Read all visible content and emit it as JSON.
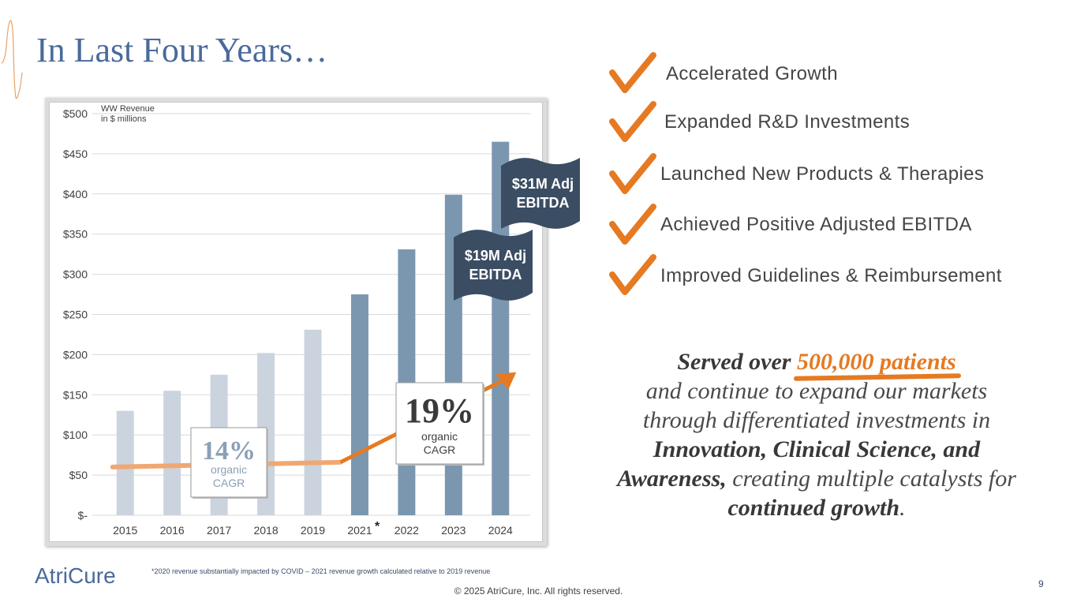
{
  "slide": {
    "title": "In Last Four Years…",
    "page_number": "9",
    "copyright": "© 2025 AtriCure, Inc. All rights reserved.",
    "footnote": "*2020 revenue substantially impacted by COVID – 2021 revenue growth calculated relative to 2019 revenue",
    "logo_text": "AtriCure"
  },
  "checklist": [
    {
      "label": "Accelerated Growth"
    },
    {
      "label": "Expanded R&D Investments"
    },
    {
      "label": "Launched New Products & Therapies"
    },
    {
      "label": "Achieved Positive Adjusted EBITDA"
    },
    {
      "label": "Improved Guidelines & Reimbursement"
    }
  ],
  "summary": {
    "p1": "Served over ",
    "highlight": "500,000 patients",
    "p2": "and continue to expand our markets through differentiated investments in",
    "bold1": "Innovation, Clinical Science, and Awareness,",
    "p3": " creating multiple catalysts for ",
    "bold2": "continued growth",
    "p4": "."
  },
  "colors": {
    "title": "#4a6a9c",
    "bar_light": "#cbd4de",
    "bar_dark": "#7b97b0",
    "orange": "#e57a22",
    "orange_light": "#f0a872",
    "flag": "#3b4d63",
    "check": "#e57a22"
  },
  "chart_data": {
    "type": "bar",
    "title": "WW Revenue",
    "subtitle": "in $ millions",
    "categories": [
      "2015",
      "2016",
      "2017",
      "2018",
      "2019",
      "2021",
      "2022",
      "2023",
      "2024"
    ],
    "category_markers": [
      "",
      "",
      "",
      "",
      "",
      "*",
      "",
      "",
      ""
    ],
    "values": [
      130,
      155,
      175,
      202,
      231,
      275,
      331,
      399,
      465
    ],
    "highlighted": [
      false,
      false,
      false,
      false,
      false,
      true,
      true,
      true,
      true
    ],
    "ylim": [
      0,
      500
    ],
    "y_ticks": [
      0,
      50,
      100,
      150,
      200,
      250,
      300,
      350,
      400,
      450,
      500
    ],
    "y_tick_labels": [
      "$-",
      "$50",
      "$100",
      "$150",
      "$200",
      "$250",
      "$300",
      "$350",
      "$400",
      "$450",
      "$500"
    ],
    "grid": true,
    "annotations": [
      {
        "big": "14%",
        "small1": "organic",
        "small2": "CAGR"
      },
      {
        "big": "19%",
        "small1": "organic",
        "small2": "CAGR"
      }
    ],
    "flags": [
      {
        "line1": "$19M Adj",
        "line2": "EBITDA",
        "category": "2023"
      },
      {
        "line1": "$31M Adj",
        "line2": "EBITDA",
        "category": "2024"
      }
    ]
  }
}
